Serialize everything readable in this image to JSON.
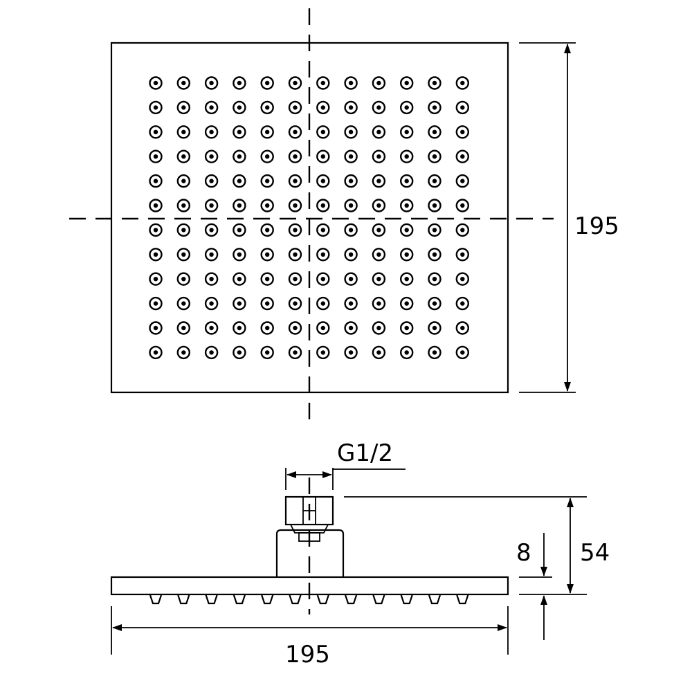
{
  "dimensions": {
    "top_height": "195",
    "thread": "G1/2",
    "plate_thickness": "8",
    "total_height": "54",
    "bottom_width": "195"
  },
  "nozzles": {
    "rows": 12,
    "cols": 12
  }
}
